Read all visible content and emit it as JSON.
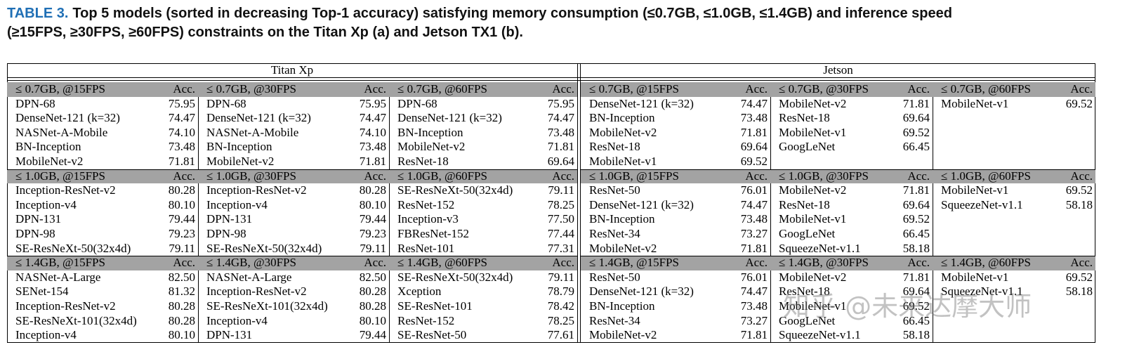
{
  "caption": {
    "label": "TABLE 3.",
    "text": "Top 5 models (sorted in decreasing Top-1 accuracy) satisfying memory consumption (≤0.7GB, ≤1.0GB, ≤1.4GB) and inference speed (≥15FPS, ≥30FPS, ≥60FPS) constraints on the Titan Xp (a) and Jetson TX1 (b)."
  },
  "table": {
    "platforms": [
      {
        "name": "Titan Xp",
        "columns": [
          {
            "blocks": [
              {
                "header": "≤ 0.7GB, @15FPS",
                "acc": "Acc.",
                "rows": [
                  [
                    "DPN-68",
                    "75.95"
                  ],
                  [
                    "DenseNet-121 (k=32)",
                    "74.47"
                  ],
                  [
                    "NASNet-A-Mobile",
                    "74.10"
                  ],
                  [
                    "BN-Inception",
                    "73.48"
                  ],
                  [
                    "MobileNet-v2",
                    "71.81"
                  ]
                ]
              },
              {
                "header": "≤ 1.0GB, @15FPS",
                "acc": "Acc.",
                "rows": [
                  [
                    "Inception-ResNet-v2",
                    "80.28"
                  ],
                  [
                    "Inception-v4",
                    "80.10"
                  ],
                  [
                    "DPN-131",
                    "79.44"
                  ],
                  [
                    "DPN-98",
                    "79.23"
                  ],
                  [
                    "SE-ResNeXt-50(32x4d)",
                    "79.11"
                  ]
                ]
              },
              {
                "header": "≤ 1.4GB, @15FPS",
                "acc": "Acc.",
                "rows": [
                  [
                    "NASNet-A-Large",
                    "82.50"
                  ],
                  [
                    "SENet-154",
                    "81.32"
                  ],
                  [
                    "Inception-ResNet-v2",
                    "80.28"
                  ],
                  [
                    "SE-ResNeXt-101(32x4d)",
                    "80.28"
                  ],
                  [
                    "Inception-v4",
                    "80.10"
                  ]
                ]
              }
            ]
          },
          {
            "blocks": [
              {
                "header": "≤ 0.7GB, @30FPS",
                "acc": "Acc.",
                "rows": [
                  [
                    "DPN-68",
                    "75.95"
                  ],
                  [
                    "DenseNet-121 (k=32)",
                    "74.47"
                  ],
                  [
                    "NASNet-A-Mobile",
                    "74.10"
                  ],
                  [
                    "BN-Inception",
                    "73.48"
                  ],
                  [
                    "MobileNet-v2",
                    "71.81"
                  ]
                ]
              },
              {
                "header": "≤ 1.0GB, @30FPS",
                "acc": "Acc.",
                "rows": [
                  [
                    "Inception-ResNet-v2",
                    "80.28"
                  ],
                  [
                    "Inception-v4",
                    "80.10"
                  ],
                  [
                    "DPN-131",
                    "79.44"
                  ],
                  [
                    "DPN-98",
                    "79.23"
                  ],
                  [
                    "SE-ResNeXt-50(32x4d)",
                    "79.11"
                  ]
                ]
              },
              {
                "header": "≤ 1.4GB, @30FPS",
                "acc": "Acc.",
                "rows": [
                  [
                    "NASNet-A-Large",
                    "82.50"
                  ],
                  [
                    "Inception-ResNet-v2",
                    "80.28"
                  ],
                  [
                    "SE-ResNeXt-101(32x4d)",
                    "80.28"
                  ],
                  [
                    "Inception-v4",
                    "80.10"
                  ],
                  [
                    "DPN-131",
                    "79.44"
                  ]
                ]
              }
            ]
          },
          {
            "blocks": [
              {
                "header": "≤ 0.7GB, @60FPS",
                "acc": "Acc.",
                "rows": [
                  [
                    "DPN-68",
                    "75.95"
                  ],
                  [
                    "DenseNet-121 (k=32)",
                    "74.47"
                  ],
                  [
                    "BN-Inception",
                    "73.48"
                  ],
                  [
                    "MobileNet-v2",
                    "71.81"
                  ],
                  [
                    "ResNet-18",
                    "69.64"
                  ]
                ]
              },
              {
                "header": "≤ 1.0GB, @60FPS",
                "acc": "Acc.",
                "rows": [
                  [
                    "SE-ResNeXt-50(32x4d)",
                    "79.11"
                  ],
                  [
                    "ResNet-152",
                    "78.25"
                  ],
                  [
                    "Inception-v3",
                    "77.50"
                  ],
                  [
                    "FBResNet-152",
                    "77.44"
                  ],
                  [
                    "ResNet-101",
                    "77.31"
                  ]
                ]
              },
              {
                "header": "≤ 1.4GB, @60FPS",
                "acc": "Acc.",
                "rows": [
                  [
                    "SE-ResNeXt-50(32x4d)",
                    "79.11"
                  ],
                  [
                    "Xception",
                    "78.79"
                  ],
                  [
                    "SE-ResNet-101",
                    "78.42"
                  ],
                  [
                    "ResNet-152",
                    "78.25"
                  ],
                  [
                    "SE-ResNet-50",
                    "77.61"
                  ]
                ]
              }
            ]
          }
        ]
      },
      {
        "name": "Jetson",
        "columns": [
          {
            "blocks": [
              {
                "header": "≤ 0.7GB, @15FPS",
                "acc": "Acc.",
                "rows": [
                  [
                    "DenseNet-121 (k=32)",
                    "74.47"
                  ],
                  [
                    "BN-Inception",
                    "73.48"
                  ],
                  [
                    "MobileNet-v2",
                    "71.81"
                  ],
                  [
                    "ResNet-18",
                    "69.64"
                  ],
                  [
                    "MobileNet-v1",
                    "69.52"
                  ]
                ]
              },
              {
                "header": "≤ 1.0GB, @15FPS",
                "acc": "Acc.",
                "rows": [
                  [
                    "ResNet-50",
                    "76.01"
                  ],
                  [
                    "DenseNet-121 (k=32)",
                    "74.47"
                  ],
                  [
                    "BN-Inception",
                    "73.48"
                  ],
                  [
                    "ResNet-34",
                    "73.27"
                  ],
                  [
                    "MobileNet-v2",
                    "71.81"
                  ]
                ]
              },
              {
                "header": "≤ 1.4GB, @15FPS",
                "acc": "Acc.",
                "rows": [
                  [
                    "ResNet-50",
                    "76.01"
                  ],
                  [
                    "DenseNet-121 (k=32)",
                    "74.47"
                  ],
                  [
                    "BN-Inception",
                    "73.48"
                  ],
                  [
                    "ResNet-34",
                    "73.27"
                  ],
                  [
                    "MobileNet-v2",
                    "71.81"
                  ]
                ]
              }
            ]
          },
          {
            "blocks": [
              {
                "header": "≤ 0.7GB, @30FPS",
                "acc": "Acc.",
                "rows": [
                  [
                    "MobileNet-v2",
                    "71.81"
                  ],
                  [
                    "ResNet-18",
                    "69.64"
                  ],
                  [
                    "MobileNet-v1",
                    "69.52"
                  ],
                  [
                    "GoogLeNet",
                    "66.45"
                  ]
                ]
              },
              {
                "header": "≤ 1.0GB, @30FPS",
                "acc": "Acc.",
                "rows": [
                  [
                    "MobileNet-v2",
                    "71.81"
                  ],
                  [
                    "ResNet-18",
                    "69.64"
                  ],
                  [
                    "MobileNet-v1",
                    "69.52"
                  ],
                  [
                    "GoogLeNet",
                    "66.45"
                  ],
                  [
                    "SqueezeNet-v1.1",
                    "58.18"
                  ]
                ]
              },
              {
                "header": "≤ 1.4GB, @30FPS",
                "acc": "Acc.",
                "rows": [
                  [
                    "MobileNet-v2",
                    "71.81"
                  ],
                  [
                    "ResNet-18",
                    "69.64"
                  ],
                  [
                    "MobileNet-v1",
                    "69.52"
                  ],
                  [
                    "GoogLeNet",
                    "66.45"
                  ],
                  [
                    "SqueezeNet-v1.1",
                    "58.18"
                  ]
                ]
              }
            ]
          },
          {
            "blocks": [
              {
                "header": "≤ 0.7GB, @60FPS",
                "acc": "Acc.",
                "rows": [
                  [
                    "MobileNet-v1",
                    "69.52"
                  ]
                ]
              },
              {
                "header": "≤ 1.0GB, @60FPS",
                "acc": "Acc.",
                "rows": [
                  [
                    "MobileNet-v1",
                    "69.52"
                  ],
                  [
                    "SqueezeNet-v1.1",
                    "58.18"
                  ]
                ]
              },
              {
                "header": "≤ 1.4GB, @60FPS",
                "acc": "Acc.",
                "rows": [
                  [
                    "MobileNet-v1",
                    "69.52"
                  ],
                  [
                    "SqueezeNet-v1.1",
                    "58.18"
                  ]
                ]
              }
            ]
          }
        ]
      }
    ]
  },
  "watermark": "知乎 @未来达摩大师"
}
